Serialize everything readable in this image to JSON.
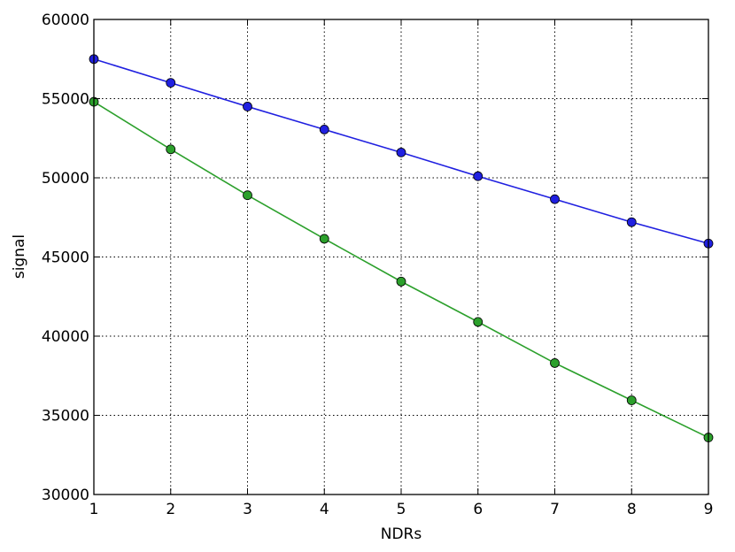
{
  "chart_data": {
    "type": "line",
    "title": "",
    "xlabel": "NDRs",
    "ylabel": "signal",
    "x": [
      1,
      2,
      3,
      4,
      5,
      6,
      7,
      8,
      9
    ],
    "xlim": [
      1,
      9
    ],
    "ylim": [
      30000,
      60000
    ],
    "xticks": [
      1,
      2,
      3,
      4,
      5,
      6,
      7,
      8,
      9
    ],
    "yticks": [
      30000,
      35000,
      40000,
      45000,
      50000,
      55000,
      60000
    ],
    "grid": true,
    "legend": "none",
    "series": [
      {
        "color": "#2020e0",
        "marker": "circle",
        "values": [
          57500,
          56000,
          54500,
          53050,
          51600,
          50100,
          48650,
          47200,
          45850
        ]
      },
      {
        "color": "#2ca02c",
        "marker": "circle",
        "values": [
          54800,
          51800,
          48900,
          46150,
          43450,
          40900,
          38300,
          35950,
          33600
        ]
      }
    ]
  }
}
